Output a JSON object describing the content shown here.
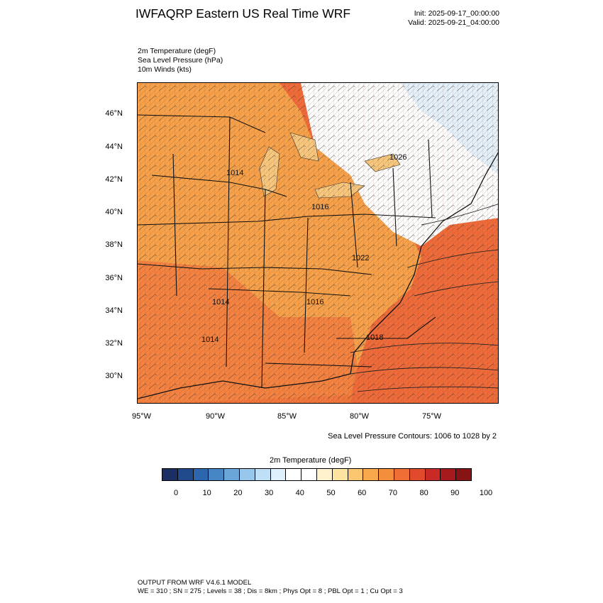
{
  "header": {
    "title": "IWFAQRP Eastern US Real Time WRF",
    "init": "Init: 2025-09-17_00:00:00",
    "valid": "Valid: 2025-09-21_04:00:00"
  },
  "variables": [
    "2m Temperature   (degF)",
    "Sea Level Pressure   (hPa)",
    "10m Winds   (kts)"
  ],
  "map": {
    "lat_labels": [
      "46°N",
      "44°N",
      "42°N",
      "40°N",
      "38°N",
      "36°N",
      "34°N",
      "32°N",
      "30°N"
    ],
    "lon_labels": [
      "95°W",
      "90°W",
      "85°W",
      "80°W",
      "75°W"
    ],
    "pressure_labels": [
      "1014",
      "1016",
      "1026",
      "1022",
      "1016",
      "1014",
      "1014",
      "1018"
    ],
    "contour_note": "Sea Level Pressure Contours: 1006 to 1028 by 2",
    "ocean_color": "#f06b3a",
    "land_warm_color": "#f7a24a",
    "cold_color": "#e4f1fb"
  },
  "colorbar": {
    "title": "2m Temperature  (degF)",
    "colors": [
      "#1b2f62",
      "#214a8c",
      "#2c67ae",
      "#4686c4",
      "#6aa6d8",
      "#97c8ec",
      "#bde0f6",
      "#ddf0fb",
      "#ffffff",
      "#ffffff",
      "#fff2cc",
      "#fde2a0",
      "#fbc66f",
      "#f8a94c",
      "#f58e3c",
      "#ee6e35",
      "#e14a2c",
      "#c92a25",
      "#a61a1d",
      "#861414"
    ],
    "labels": [
      "0",
      "10",
      "20",
      "30",
      "40",
      "50",
      "60",
      "70",
      "80",
      "90",
      "100"
    ]
  },
  "footer": {
    "line1": "OUTPUT FROM WRF V4.6.1 MODEL",
    "line2": "WE = 310 ; SN = 275 ; Levels = 38 ; Dis = 8km ; Phys Opt = 8 ; PBL Opt = 1 ; Cu Opt = 3"
  }
}
